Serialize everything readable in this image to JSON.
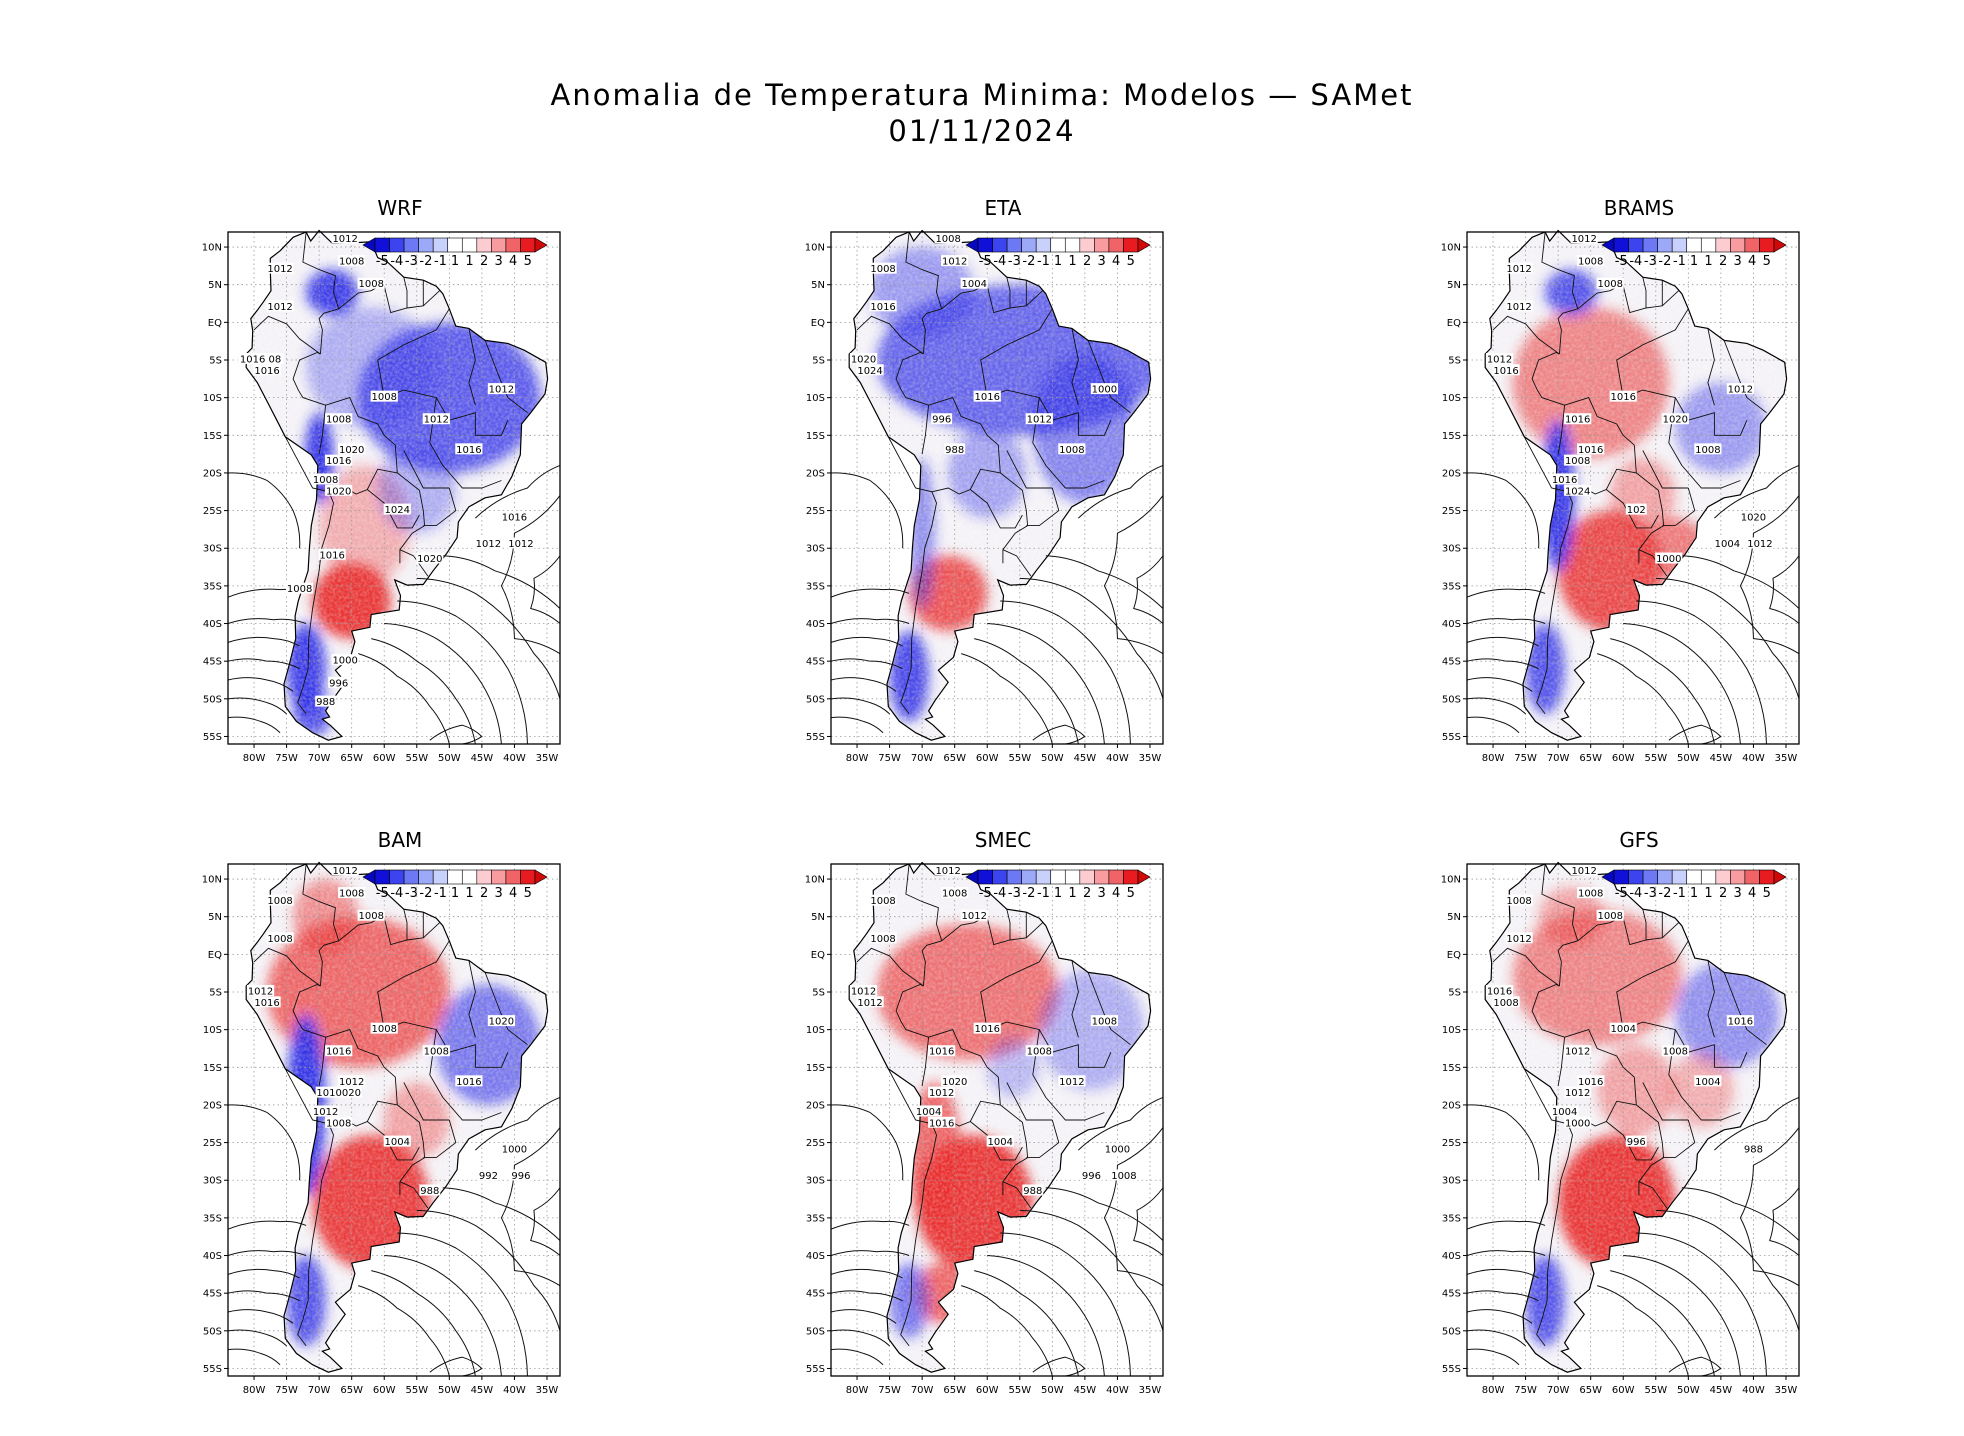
{
  "title": {
    "line1": "Anomalia de Temperatura Minima: Modelos — SAMet",
    "line2": "01/11/2024"
  },
  "lat_ticks": [
    "10N",
    "5N",
    "EQ",
    "5S",
    "10S",
    "15S",
    "20S",
    "25S",
    "30S",
    "35S",
    "40S",
    "45S",
    "50S",
    "55S"
  ],
  "lon_ticks": [
    "80W",
    "75W",
    "70W",
    "65W",
    "60W",
    "55W",
    "50W",
    "45W",
    "40W",
    "35W"
  ],
  "colorbar": {
    "labels": [
      "-5",
      "-4",
      "-3",
      "-2",
      "-1",
      "1",
      "1",
      "2",
      "3",
      "4",
      "5"
    ],
    "colors": [
      "#1010d8",
      "#3c44f0",
      "#6c78f4",
      "#9ca8f8",
      "#c8d0fc",
      "#ffffff",
      "#ffffff",
      "#fcccd0",
      "#f89ca0",
      "#f06468",
      "#e81c20"
    ]
  },
  "colors": {
    "cold": "#2a2ae6",
    "warm": "#e82a2a",
    "land": "#f4f2f6"
  },
  "panels": [
    {
      "title": "WRF",
      "theme": "wrf",
      "isobars": [
        "1012",
        "1012",
        "1008",
        "1008",
        "1012",
        "1016 08",
        "1016",
        "1008",
        "1012",
        "1016",
        "1012",
        "1008",
        "1020",
        "1016",
        "1008",
        "1020",
        "1024",
        "1016",
        "1012",
        "1012",
        "1020",
        "1016",
        "1008",
        "1000",
        "996",
        "988"
      ]
    },
    {
      "title": "ETA",
      "theme": "eta",
      "isobars": [
        "1008",
        "1008",
        "1012",
        "1004",
        "1016",
        "1020",
        "1024",
        "1016",
        "1012",
        "1008",
        "1000",
        "996",
        "988"
      ]
    },
    {
      "title": "BRAMS",
      "theme": "brams",
      "isobars": [
        "1012",
        "1012",
        "1008",
        "1008",
        "1012",
        "1012",
        "1016",
        "1016",
        "1020",
        "1008",
        "1012",
        "1016",
        "1016",
        "1008",
        "1016",
        "1024",
        "102",
        "1020",
        "1012",
        "1004",
        "1000"
      ]
    },
    {
      "title": "BAM",
      "theme": "bam",
      "isobars": [
        "1012",
        "1008",
        "1008",
        "1008",
        "1008",
        "1012",
        "1016",
        "1008",
        "1008",
        "1016",
        "1020",
        "1016",
        "1012",
        "1010020",
        "1012",
        "1008",
        "1004",
        "1000",
        "996",
        "992",
        "988"
      ]
    },
    {
      "title": "SMEC",
      "theme": "smec",
      "isobars": [
        "1012",
        "1008",
        "1008",
        "1012",
        "1008",
        "1012",
        "1012",
        "1016",
        "1008",
        "1012",
        "1008",
        "1016",
        "1020",
        "1012",
        "1004",
        "1016",
        "1004",
        "1000",
        "1008",
        "996",
        "988"
      ]
    },
    {
      "title": "GFS",
      "theme": "gfs",
      "isobars": [
        "1012",
        "1008",
        "1008",
        "1008",
        "1012",
        "1016",
        "1008",
        "1004",
        "1008",
        "1004",
        "1016",
        "1012",
        "1016",
        "1012",
        "1004",
        "1000",
        "996",
        "988"
      ]
    }
  ]
}
